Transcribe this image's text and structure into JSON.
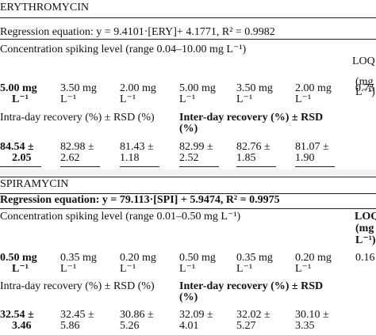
{
  "erythromycin": {
    "name": "ERYTHROMYCIN",
    "regression": "Regression equation: y = 9.4101·[ERY]+ 4.1771, R² = 0.9982",
    "spiking_level": "Concentration spiking level (range 0.04–10.00 mg L⁻¹)",
    "loq": {
      "header_1": "LOQ",
      "header_2": "(mg",
      "header_3": "L⁻¹)",
      "value": "0.75"
    },
    "levels": [
      {
        "line1": "5.00 mg",
        "line2": "L⁻¹"
      },
      {
        "line1": "3.50 mg",
        "line2": "L⁻¹"
      },
      {
        "line1": "2.00 mg",
        "line2": "L⁻¹"
      },
      {
        "line1": "5.00 mg",
        "line2": "L⁻¹"
      },
      {
        "line1": "3.50 mg",
        "line2": "L⁻¹"
      },
      {
        "line1": "2.00 mg",
        "line2": "L⁻¹"
      }
    ],
    "intra_label": "Intra-day recovery (%) ± RSD (%)",
    "inter_label_1": "Inter-day recovery (%) ± RSD",
    "inter_label_2": "(%)",
    "values": [
      {
        "line1": "84.54 ±",
        "line2": "2.05"
      },
      {
        "line1": "82.98 ±",
        "line2": "2.62"
      },
      {
        "line1": "81.43 ±",
        "line2": "1.18"
      },
      {
        "line1": "82.99 ±",
        "line2": "2.52"
      },
      {
        "line1": "82.76 ±",
        "line2": "1.85"
      },
      {
        "line1": "81.07 ±",
        "line2": "1.90"
      }
    ]
  },
  "spiramycin": {
    "name": "SPIRAMYCIN",
    "regression": "Regression equation: y = 79.113·[SPI] + 5.9474, R² = 0.9975",
    "spiking_level": "Concentration spiking level (range 0.01–0.50 mg L⁻¹)",
    "loq": {
      "header_1": "LOQ",
      "header_2": "(mg",
      "header_3": "L⁻¹)",
      "value": "0.16"
    },
    "levels": [
      {
        "line1": "0.50 mg",
        "line2": "L⁻¹"
      },
      {
        "line1": "0.35 mg",
        "line2": "L⁻¹"
      },
      {
        "line1": "0.20 mg",
        "line2": "L⁻¹"
      },
      {
        "line1": "0.50 mg",
        "line2": "L⁻¹"
      },
      {
        "line1": "0.35 mg",
        "line2": "L⁻¹"
      },
      {
        "line1": "0.20 mg",
        "line2": "L⁻¹"
      }
    ],
    "intra_label": "Intra-day recovery (%) ± RSD (%)",
    "inter_label_1": "Inter-day recovery (%) ± RSD",
    "inter_label_2": "(%)",
    "values": [
      {
        "line1": "32.54 ±",
        "line2": "3.46"
      },
      {
        "line1": "32.45 ±",
        "line2": "5.86"
      },
      {
        "line1": "30.86 ±",
        "line2": "5.26"
      },
      {
        "line1": "32.09 ±",
        "line2": "4.01"
      },
      {
        "line1": "32.02 ±",
        "line2": "5.27"
      },
      {
        "line1": "30.10 ±",
        "line2": "3.35"
      }
    ]
  }
}
